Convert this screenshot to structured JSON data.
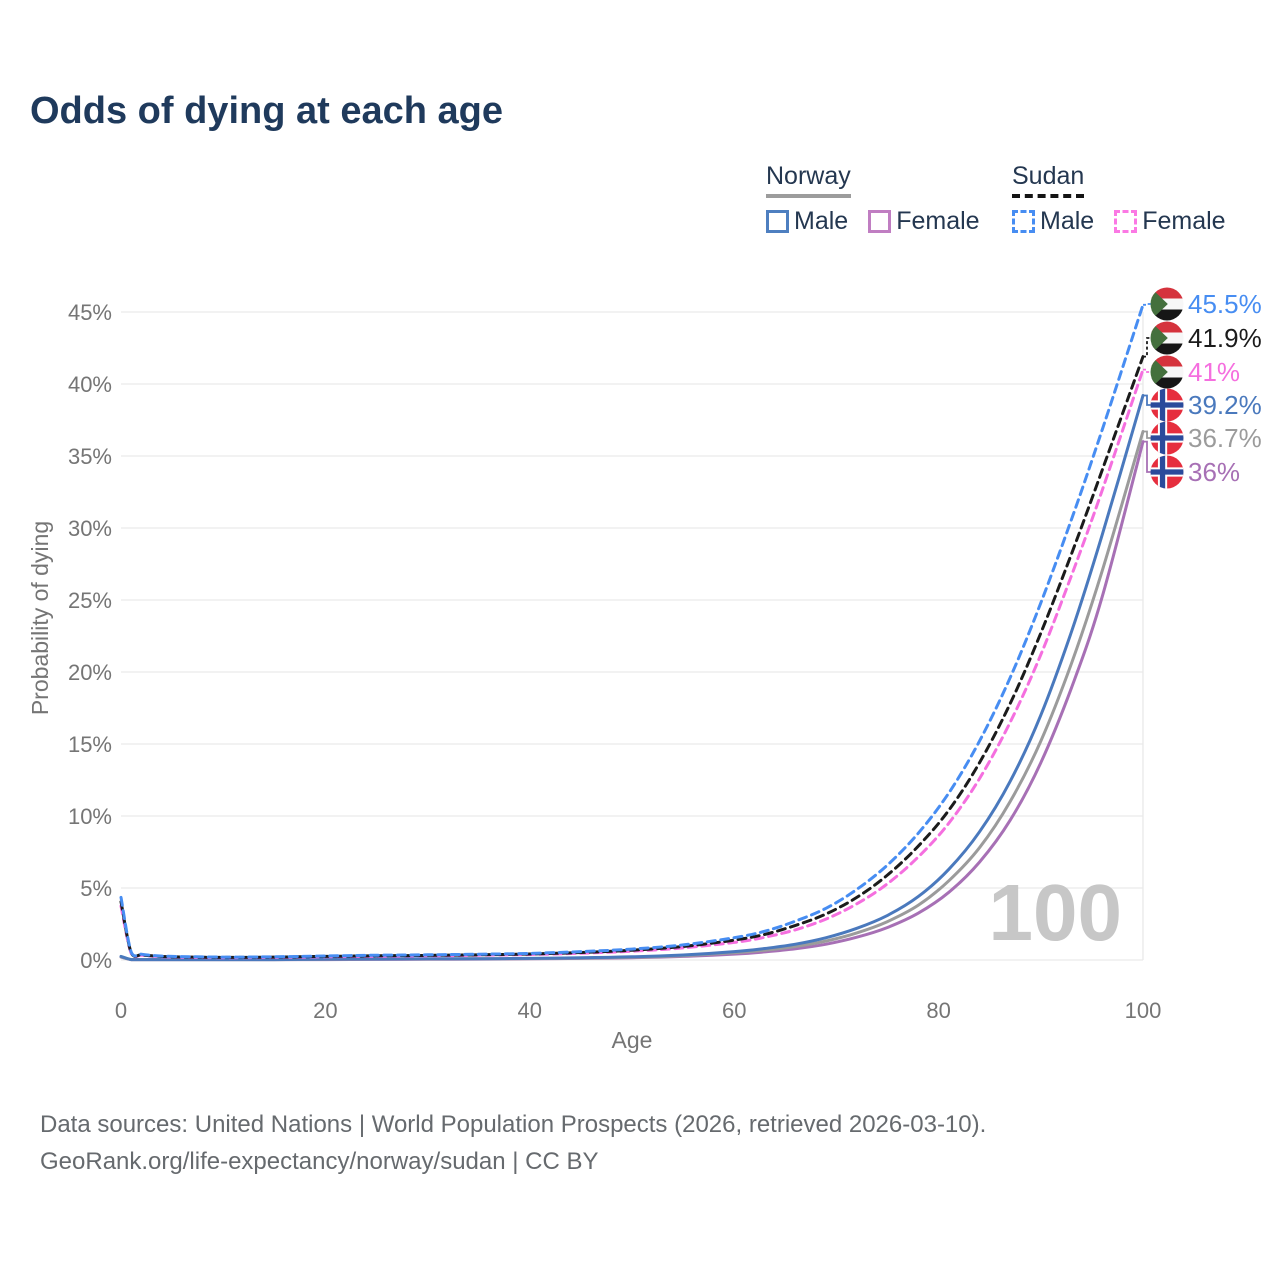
{
  "title": "Odds of dying at each age",
  "legend": {
    "groups": [
      {
        "country": "Norway",
        "line_style": "solid",
        "underline_color": "#9c9c9c",
        "items": [
          {
            "label": "Male",
            "color": "#4e7fc0"
          },
          {
            "label": "Female",
            "color": "#c07ec2"
          }
        ]
      },
      {
        "country": "Sudan",
        "line_style": "dashed",
        "underline_color": "#141414",
        "items": [
          {
            "label": "Male",
            "color": "#478df2"
          },
          {
            "label": "Female",
            "color": "#fb79e4"
          }
        ]
      }
    ]
  },
  "chart_data": {
    "type": "line",
    "title": "Odds of dying at each age",
    "xlabel": "Age",
    "ylabel": "Probability of dying",
    "x_ticks": [
      [
        0,
        "0"
      ],
      [
        20,
        "20"
      ],
      [
        40,
        "40"
      ],
      [
        60,
        "60"
      ],
      [
        80,
        "80"
      ],
      [
        100,
        "100"
      ]
    ],
    "y_ticks": [
      [
        0,
        "0%"
      ],
      [
        5,
        "5%"
      ],
      [
        10,
        "10%"
      ],
      [
        15,
        "15%"
      ],
      [
        20,
        "20%"
      ],
      [
        25,
        "25%"
      ],
      [
        30,
        "30%"
      ],
      [
        35,
        "35%"
      ],
      [
        40,
        "40%"
      ],
      [
        45,
        "45%"
      ]
    ],
    "xlim": [
      0,
      100
    ],
    "ylim_pct": [
      0,
      45
    ],
    "grid": "horizontal",
    "legend_position": "top-right",
    "watermark": "100",
    "series": [
      {
        "name": "Sudan male",
        "flag": "sudan",
        "dash": true,
        "color": "#478df2",
        "end_label": "45.5%",
        "points": [
          [
            0,
            4.35
          ],
          [
            1,
            0.55
          ],
          [
            2,
            0.4
          ],
          [
            3,
            0.32
          ],
          [
            5,
            0.25
          ],
          [
            10,
            0.2
          ],
          [
            15,
            0.22
          ],
          [
            20,
            0.28
          ],
          [
            25,
            0.33
          ],
          [
            30,
            0.36
          ],
          [
            35,
            0.4
          ],
          [
            40,
            0.46
          ],
          [
            45,
            0.58
          ],
          [
            50,
            0.76
          ],
          [
            55,
            1.05
          ],
          [
            60,
            1.55
          ],
          [
            63,
            2.0
          ],
          [
            66,
            2.7
          ],
          [
            69,
            3.6
          ],
          [
            72,
            4.9
          ],
          [
            75,
            6.6
          ],
          [
            78,
            8.8
          ],
          [
            81,
            11.6
          ],
          [
            84,
            15.2
          ],
          [
            87,
            19.6
          ],
          [
            90,
            24.8
          ],
          [
            93,
            30.6
          ],
          [
            96,
            36.8
          ],
          [
            100,
            45.5
          ]
        ]
      },
      {
        "name": "Sudan",
        "flag": "sudan",
        "dash": true,
        "color": "#1b1b1b",
        "end_label": "41.9%",
        "points": [
          [
            0,
            4.05
          ],
          [
            1,
            0.5
          ],
          [
            2,
            0.36
          ],
          [
            3,
            0.29
          ],
          [
            5,
            0.22
          ],
          [
            10,
            0.18
          ],
          [
            15,
            0.2
          ],
          [
            20,
            0.25
          ],
          [
            25,
            0.29
          ],
          [
            30,
            0.32
          ],
          [
            35,
            0.36
          ],
          [
            40,
            0.42
          ],
          [
            45,
            0.52
          ],
          [
            50,
            0.68
          ],
          [
            55,
            0.94
          ],
          [
            60,
            1.38
          ],
          [
            63,
            1.78
          ],
          [
            66,
            2.4
          ],
          [
            69,
            3.2
          ],
          [
            72,
            4.35
          ],
          [
            75,
            5.9
          ],
          [
            78,
            7.9
          ],
          [
            81,
            10.4
          ],
          [
            84,
            13.7
          ],
          [
            87,
            17.8
          ],
          [
            90,
            22.7
          ],
          [
            93,
            28.2
          ],
          [
            96,
            34.0
          ],
          [
            100,
            41.9
          ]
        ]
      },
      {
        "name": "Sudan female",
        "flag": "sudan",
        "dash": true,
        "color": "#f56fdf",
        "end_label": "41%",
        "points": [
          [
            0,
            3.75
          ],
          [
            1,
            0.46
          ],
          [
            2,
            0.33
          ],
          [
            3,
            0.27
          ],
          [
            5,
            0.2
          ],
          [
            10,
            0.16
          ],
          [
            15,
            0.18
          ],
          [
            20,
            0.22
          ],
          [
            25,
            0.26
          ],
          [
            30,
            0.29
          ],
          [
            35,
            0.33
          ],
          [
            40,
            0.38
          ],
          [
            45,
            0.47
          ],
          [
            50,
            0.61
          ],
          [
            55,
            0.84
          ],
          [
            60,
            1.22
          ],
          [
            63,
            1.58
          ],
          [
            66,
            2.1
          ],
          [
            69,
            2.85
          ],
          [
            72,
            3.9
          ],
          [
            75,
            5.3
          ],
          [
            78,
            7.15
          ],
          [
            81,
            9.5
          ],
          [
            84,
            12.6
          ],
          [
            87,
            16.5
          ],
          [
            90,
            21.2
          ],
          [
            93,
            26.7
          ],
          [
            96,
            32.6
          ],
          [
            100,
            41.0
          ]
        ]
      },
      {
        "name": "Norway male",
        "flag": "norway",
        "dash": false,
        "color": "#4a79bd",
        "end_label": "39.2%",
        "points": [
          [
            0,
            0.25
          ],
          [
            1,
            0.03
          ],
          [
            2,
            0.02
          ],
          [
            5,
            0.012
          ],
          [
            10,
            0.012
          ],
          [
            15,
            0.03
          ],
          [
            20,
            0.06
          ],
          [
            25,
            0.07
          ],
          [
            30,
            0.08
          ],
          [
            35,
            0.09
          ],
          [
            40,
            0.11
          ],
          [
            45,
            0.15
          ],
          [
            50,
            0.22
          ],
          [
            55,
            0.35
          ],
          [
            60,
            0.58
          ],
          [
            63,
            0.8
          ],
          [
            66,
            1.1
          ],
          [
            69,
            1.55
          ],
          [
            72,
            2.2
          ],
          [
            75,
            3.1
          ],
          [
            78,
            4.4
          ],
          [
            81,
            6.3
          ],
          [
            84,
            8.9
          ],
          [
            87,
            12.4
          ],
          [
            90,
            17.0
          ],
          [
            93,
            22.8
          ],
          [
            96,
            29.5
          ],
          [
            100,
            39.2
          ]
        ]
      },
      {
        "name": "Norway",
        "flag": "norway",
        "dash": false,
        "color": "#9b9b9b",
        "end_label": "36.7%",
        "points": [
          [
            0,
            0.22
          ],
          [
            1,
            0.027
          ],
          [
            2,
            0.018
          ],
          [
            5,
            0.01
          ],
          [
            10,
            0.01
          ],
          [
            15,
            0.025
          ],
          [
            20,
            0.05
          ],
          [
            25,
            0.06
          ],
          [
            30,
            0.07
          ],
          [
            35,
            0.08
          ],
          [
            40,
            0.1
          ],
          [
            45,
            0.13
          ],
          [
            50,
            0.19
          ],
          [
            55,
            0.3
          ],
          [
            60,
            0.5
          ],
          [
            63,
            0.68
          ],
          [
            66,
            0.94
          ],
          [
            69,
            1.32
          ],
          [
            72,
            1.88
          ],
          [
            75,
            2.67
          ],
          [
            78,
            3.8
          ],
          [
            81,
            5.5
          ],
          [
            84,
            7.8
          ],
          [
            87,
            11.0
          ],
          [
            90,
            15.2
          ],
          [
            93,
            20.6
          ],
          [
            96,
            27.0
          ],
          [
            100,
            36.7
          ]
        ]
      },
      {
        "name": "Norway female",
        "flag": "norway",
        "dash": false,
        "color": "#a770b5",
        "end_label": "36%",
        "points": [
          [
            0,
            0.2
          ],
          [
            1,
            0.022
          ],
          [
            2,
            0.015
          ],
          [
            5,
            0.009
          ],
          [
            10,
            0.009
          ],
          [
            15,
            0.02
          ],
          [
            20,
            0.03
          ],
          [
            25,
            0.04
          ],
          [
            30,
            0.05
          ],
          [
            35,
            0.06
          ],
          [
            40,
            0.08
          ],
          [
            45,
            0.11
          ],
          [
            50,
            0.16
          ],
          [
            55,
            0.25
          ],
          [
            60,
            0.41
          ],
          [
            63,
            0.56
          ],
          [
            66,
            0.78
          ],
          [
            69,
            1.1
          ],
          [
            72,
            1.58
          ],
          [
            75,
            2.26
          ],
          [
            78,
            3.25
          ],
          [
            81,
            4.7
          ],
          [
            84,
            6.8
          ],
          [
            87,
            9.7
          ],
          [
            90,
            13.7
          ],
          [
            93,
            18.9
          ],
          [
            96,
            25.2
          ],
          [
            100,
            36.0
          ]
        ]
      }
    ]
  },
  "footer": {
    "line1": "Data sources: United Nations | World Population Prospects (2026, retrieved 2026-03-10).",
    "line2": "GeoRank.org/life-expectancy/norway/sudan | CC BY"
  }
}
